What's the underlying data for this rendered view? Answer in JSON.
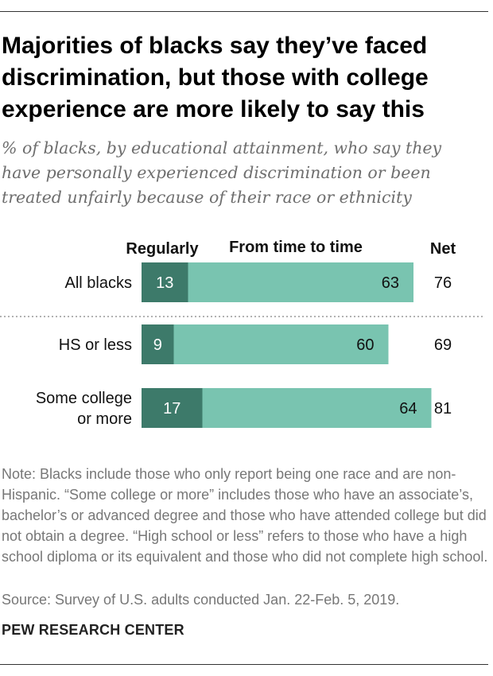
{
  "title": "Majorities of blacks say they’ve faced discrimination, but those with college experience are more likely to say this",
  "subtitle": "% of blacks, by educational attainment, who say they have personally experienced discrimination or been treated unfairly because of their race or ethnicity",
  "note": "Note: Blacks include those who only report being one race and are non-Hispanic. “Some college or more” includes those who have an associate’s, bachelor’s or advanced degree and those who have attended college but did not obtain a degree. “High school or less” refers to those who have a high school diploma or its equivalent and those who did not complete high school.",
  "source": "Source: Survey of U.S. adults conducted Jan. 22-Feb. 5, 2019.",
  "brand": "PEW RESEARCH CENTER",
  "colors": {
    "regularly": "#3d7a6a",
    "time_to_time": "#79c4b0",
    "divider": "#999999"
  },
  "chart_data": {
    "type": "bar",
    "orientation": "horizontal",
    "stacked": true,
    "categories": [
      [
        "All blacks"
      ],
      [
        "HS or less"
      ],
      [
        "Some college",
        "or more"
      ]
    ],
    "series": [
      {
        "name": "Regularly",
        "values": [
          13,
          9,
          17
        ]
      },
      {
        "name": "From time to time",
        "values": [
          63,
          60,
          64
        ]
      }
    ],
    "net_label": "Net",
    "net": [
      76,
      69,
      81
    ],
    "xlim": [
      0,
      100
    ]
  }
}
